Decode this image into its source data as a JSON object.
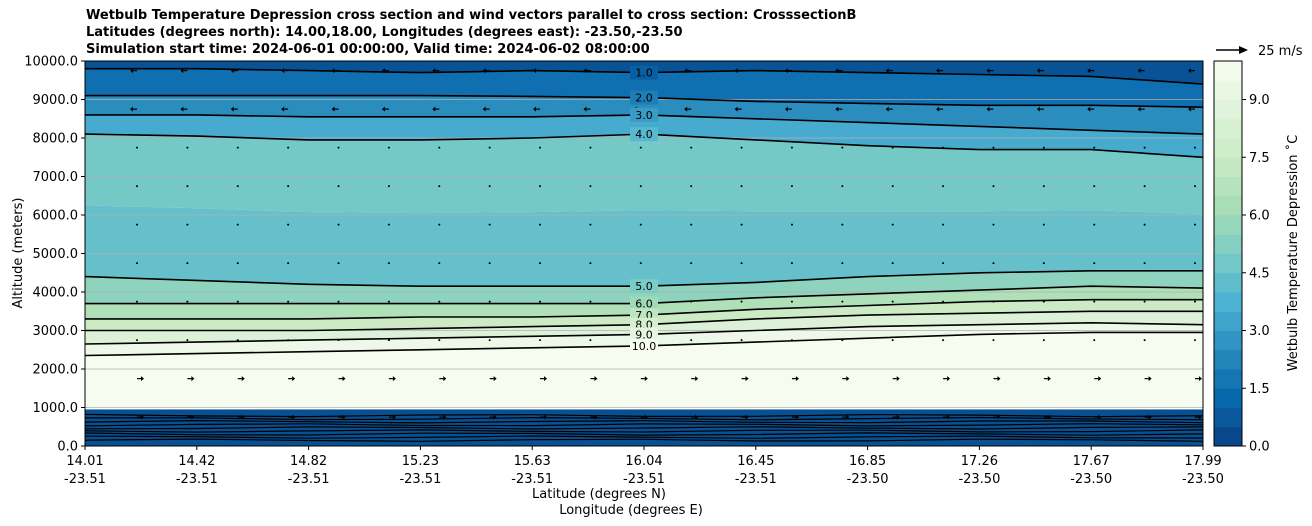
{
  "title": {
    "line1": "Wetbulb Temperature Depression cross section and wind vectors parallel to cross section: CrosssectionB",
    "line2": "Latitudes (degrees north): 14.00,18.00, Longitudes (degrees east): -23.50,-23.50",
    "line3": "Simulation start time: 2024-06-01 00:00:00, Valid time: 2024-06-02 08:00:00"
  },
  "quiver_key": "25 m/s",
  "chart_data": {
    "type": "heatmap",
    "subtype": "filled contour cross section with wind vectors",
    "xlabel_top": "Latitude (degrees N)",
    "xlabel_bottom": "Longitude (degrees E)",
    "ylabel": "Altitude (meters)",
    "ylim": [
      0,
      10000
    ],
    "y_ticks": [
      "0.0",
      "1000.0",
      "2000.0",
      "3000.0",
      "4000.0",
      "5000.0",
      "6000.0",
      "7000.0",
      "8000.0",
      "9000.0",
      "10000.0"
    ],
    "x_ticks": [
      {
        "lat": "14.01",
        "lon": "-23.51"
      },
      {
        "lat": "14.42",
        "lon": "-23.51"
      },
      {
        "lat": "14.82",
        "lon": "-23.51"
      },
      {
        "lat": "15.23",
        "lon": "-23.51"
      },
      {
        "lat": "15.63",
        "lon": "-23.51"
      },
      {
        "lat": "16.04",
        "lon": "-23.51"
      },
      {
        "lat": "16.45",
        "lon": "-23.51"
      },
      {
        "lat": "16.85",
        "lon": "-23.50"
      },
      {
        "lat": "17.26",
        "lon": "-23.50"
      },
      {
        "lat": "17.67",
        "lon": "-23.50"
      },
      {
        "lat": "17.99",
        "lon": "-23.50"
      }
    ],
    "colorbar": {
      "label": "Wetbulb Temperature Depression ˚C",
      "range": [
        0,
        10
      ],
      "levels": 20,
      "ticks": [
        "0.0",
        "1.5",
        "3.0",
        "4.5",
        "6.0",
        "7.5",
        "9.0"
      ],
      "colormap": [
        "#084081",
        "#0868ac",
        "#2b8cbe",
        "#4eb3d3",
        "#7bccc4",
        "#a8ddb5",
        "#ccebc5",
        "#e0f3db",
        "#f7fcf0"
      ]
    },
    "contours": [
      {
        "level": "1.0",
        "altitudes": [
          9800,
          9800,
          9750,
          9700,
          9750,
          9700,
          9750,
          9700,
          9650,
          9600,
          9400
        ]
      },
      {
        "level": "2.0",
        "altitudes": [
          9100,
          9100,
          9100,
          9100,
          9080,
          9050,
          8950,
          8900,
          8850,
          8850,
          8800
        ]
      },
      {
        "level": "3.0",
        "altitudes": [
          8600,
          8600,
          8550,
          8550,
          8550,
          8600,
          8500,
          8400,
          8300,
          8200,
          8100
        ]
      },
      {
        "level": "4.0",
        "altitudes": [
          8100,
          8050,
          7950,
          7950,
          8000,
          8100,
          7950,
          7800,
          7700,
          7700,
          7500
        ]
      },
      {
        "level": "5.0",
        "altitudes": [
          4400,
          4300,
          4200,
          4150,
          4150,
          4150,
          4250,
          4400,
          4500,
          4550,
          4550
        ]
      },
      {
        "level": "6.0",
        "altitudes": [
          3700,
          3700,
          3700,
          3700,
          3700,
          3700,
          3850,
          3950,
          4050,
          4150,
          4100
        ]
      },
      {
        "level": "7.0",
        "altitudes": [
          3300,
          3300,
          3300,
          3350,
          3350,
          3400,
          3550,
          3650,
          3750,
          3800,
          3800
        ]
      },
      {
        "level": "8.0",
        "altitudes": [
          3000,
          3000,
          3000,
          3050,
          3100,
          3150,
          3300,
          3400,
          3450,
          3500,
          3500
        ]
      },
      {
        "level": "9.0",
        "altitudes": [
          2650,
          2700,
          2750,
          2800,
          2850,
          2900,
          3000,
          3100,
          3150,
          3200,
          3150
        ]
      },
      {
        "level": "10.0",
        "altitudes": [
          2350,
          2400,
          2450,
          2500,
          2550,
          2600,
          2700,
          2800,
          2900,
          2950,
          2950
        ]
      }
    ],
    "grid": true
  }
}
